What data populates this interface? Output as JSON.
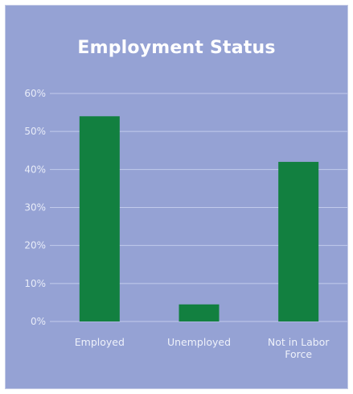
{
  "chart_data": {
    "type": "bar",
    "title": "Employment Status",
    "categories": [
      [
        "Employed"
      ],
      [
        "Unemployed"
      ],
      [
        "Not in Labor",
        "Force"
      ]
    ],
    "values": [
      54,
      4.5,
      42
    ],
    "ylim": [
      0,
      60
    ],
    "yticks": [
      "0%",
      "10%",
      "20%",
      "30%",
      "40%",
      "50%",
      "60%"
    ],
    "ytick_values": [
      0,
      10,
      20,
      30,
      40,
      50,
      60
    ],
    "grid": true,
    "colors": {
      "background": "#95a2d4",
      "bar": "#128040",
      "grid": "#c2cbec",
      "text": "#ffffff"
    }
  }
}
